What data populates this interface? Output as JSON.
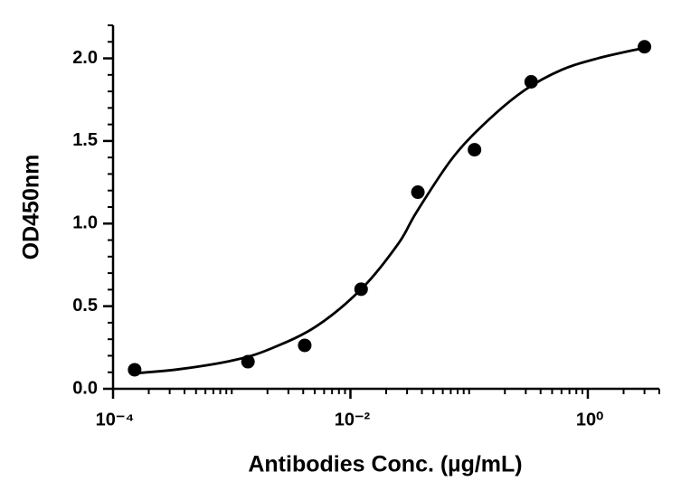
{
  "chart_data": {
    "type": "scatter",
    "xlabel": "Antibodies Conc. (µg/mL)",
    "ylabel": "OD450nm",
    "xscale": "log",
    "xlim": [
      0.0001,
      4
    ],
    "ylim": [
      0,
      2.2
    ],
    "xticks": [
      {
        "value": 0.0001,
        "label": "10⁻⁴"
      },
      {
        "value": 0.01,
        "label": "10⁻²"
      },
      {
        "value": 1,
        "label": "10⁰"
      }
    ],
    "xminorticks": [
      0.0002,
      0.0003,
      0.0004,
      0.0005,
      0.0006,
      0.0007,
      0.0008,
      0.0009,
      0.001,
      0.002,
      0.003,
      0.004,
      0.005,
      0.006,
      0.007,
      0.008,
      0.009,
      0.02,
      0.03,
      0.04,
      0.05,
      0.06,
      0.07,
      0.08,
      0.09,
      0.1,
      0.2,
      0.3,
      0.4,
      0.5,
      0.6,
      0.7,
      0.8,
      0.9,
      2,
      3,
      4
    ],
    "yticks": [
      {
        "value": 0,
        "label": "0.0"
      },
      0.5,
      {
        "value": 1,
        "label": "1.0"
      },
      1.5,
      {
        "value": 2,
        "label": "2.0"
      }
    ],
    "yminorticks": [
      0.1,
      0.2,
      0.3,
      0.4,
      0.6,
      0.7,
      0.8,
      0.9,
      1.1,
      1.2,
      1.3,
      1.4,
      1.6,
      1.7,
      1.8,
      1.9,
      2.1,
      2.2
    ],
    "series": [
      {
        "type": "scatter",
        "color": "#000000",
        "x": [
          0.000152,
          0.00137,
          0.00412,
          0.0123,
          0.037,
          0.111,
          0.333,
          3
        ],
        "values": [
          0.115,
          0.164,
          0.263,
          0.603,
          1.19,
          1.447,
          1.858,
          2.07
        ]
      },
      {
        "type": "line",
        "color": "#000000",
        "x": [
          0.00015,
          0.000374,
          0.00107,
          0.00217,
          0.0052,
          0.0126,
          0.0254,
          0.0361,
          0.073,
          0.147,
          0.297,
          0.6,
          1.21,
          2.82
        ],
        "values": [
          0.093,
          0.12,
          0.175,
          0.245,
          0.38,
          0.61,
          0.88,
          1.07,
          1.4,
          1.63,
          1.81,
          1.93,
          2.0,
          2.06
        ]
      }
    ]
  }
}
